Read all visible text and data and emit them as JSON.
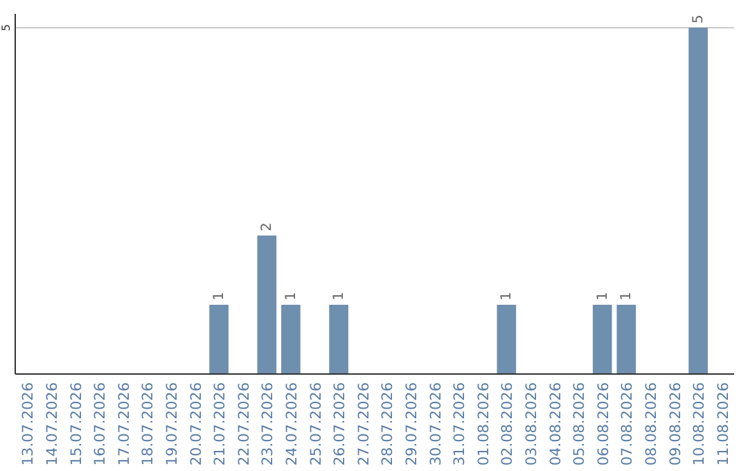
{
  "chart_data": {
    "type": "bar",
    "categories": [
      "13.07.2026",
      "14.07.2026",
      "15.07.2026",
      "16.07.2026",
      "17.07.2026",
      "18.07.2026",
      "19.07.2026",
      "20.07.2026",
      "21.07.2026",
      "22.07.2026",
      "23.07.2026",
      "24.07.2026",
      "25.07.2026",
      "26.07.2026",
      "27.07.2026",
      "28.07.2026",
      "29.07.2026",
      "30.07.2026",
      "31.07.2026",
      "01.08.2026",
      "02.08.2026",
      "03.08.2026",
      "04.08.2026",
      "05.08.2026",
      "06.08.2026",
      "07.08.2026",
      "08.08.2026",
      "09.08.2026",
      "10.08.2026",
      "11.08.2026"
    ],
    "values": [
      0,
      0,
      0,
      0,
      0,
      0,
      0,
      0,
      1,
      0,
      2,
      1,
      0,
      1,
      0,
      0,
      0,
      0,
      0,
      0,
      1,
      0,
      0,
      0,
      1,
      1,
      0,
      0,
      5,
      0
    ],
    "value_labels": [
      null,
      null,
      null,
      null,
      null,
      null,
      null,
      null,
      "1",
      null,
      "2",
      "1",
      null,
      "1",
      null,
      null,
      null,
      null,
      null,
      null,
      "1",
      null,
      null,
      null,
      "1",
      "1",
      null,
      null,
      "5",
      null
    ],
    "color": "#6f8fae",
    "ylim": [
      0,
      5.2
    ],
    "yticks": [
      5
    ],
    "grid": "y"
  }
}
